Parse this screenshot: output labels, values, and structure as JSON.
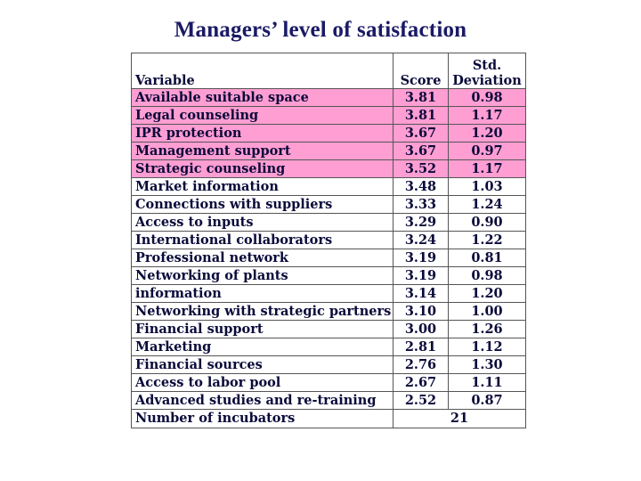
{
  "title": "Managers’ level of satisfaction",
  "table": {
    "headers": {
      "variable": "Variable",
      "score": "Score",
      "sd_line1": "Std.",
      "sd_line2": "Deviation"
    },
    "highlight_color": "#ff9ed2",
    "rows": [
      {
        "variable": "Available suitable space",
        "score": "3.81",
        "sd": "0.98",
        "highlight": true
      },
      {
        "variable": "Legal counseling",
        "score": "3.81",
        "sd": "1.17",
        "highlight": true
      },
      {
        "variable": "IPR protection",
        "score": "3.67",
        "sd": "1.20",
        "highlight": true
      },
      {
        "variable": "Management support",
        "score": "3.67",
        "sd": "0.97",
        "highlight": true
      },
      {
        "variable": "Strategic counseling",
        "score": "3.52",
        "sd": "1.17",
        "highlight": true
      },
      {
        "variable": "Market information",
        "score": "3.48",
        "sd": "1.03",
        "highlight": false
      },
      {
        "variable": "Connections with suppliers",
        "score": "3.33",
        "sd": "1.24",
        "highlight": false
      },
      {
        "variable": "Access to inputs",
        "score": "3.29",
        "sd": "0.90",
        "highlight": false
      },
      {
        "variable": "International collaborators",
        "score": "3.24",
        "sd": "1.22",
        "highlight": false
      },
      {
        "variable": "Professional network",
        "score": "3.19",
        "sd": "0.81",
        "highlight": false
      },
      {
        "variable": "Networking of plants",
        "score": "3.19",
        "sd": "0.98",
        "highlight": false
      },
      {
        "variable": "information",
        "score": "3.14",
        "sd": "1.20",
        "highlight": false
      },
      {
        "variable": "Networking with strategic partners",
        "score": "3.10",
        "sd": "1.00",
        "highlight": false
      },
      {
        "variable": "Financial support",
        "score": "3.00",
        "sd": "1.26",
        "highlight": false
      },
      {
        "variable": "Marketing",
        "score": "2.81",
        "sd": "1.12",
        "highlight": false
      },
      {
        "variable": "Financial sources",
        "score": "2.76",
        "sd": "1.30",
        "highlight": false
      },
      {
        "variable": "Access to labor pool",
        "score": "2.67",
        "sd": "1.11",
        "highlight": false
      },
      {
        "variable": "Advanced studies and re-training",
        "score": "2.52",
        "sd": "0.87",
        "highlight": false
      }
    ],
    "footer": {
      "label": "Number of incubators",
      "value": "21"
    }
  }
}
